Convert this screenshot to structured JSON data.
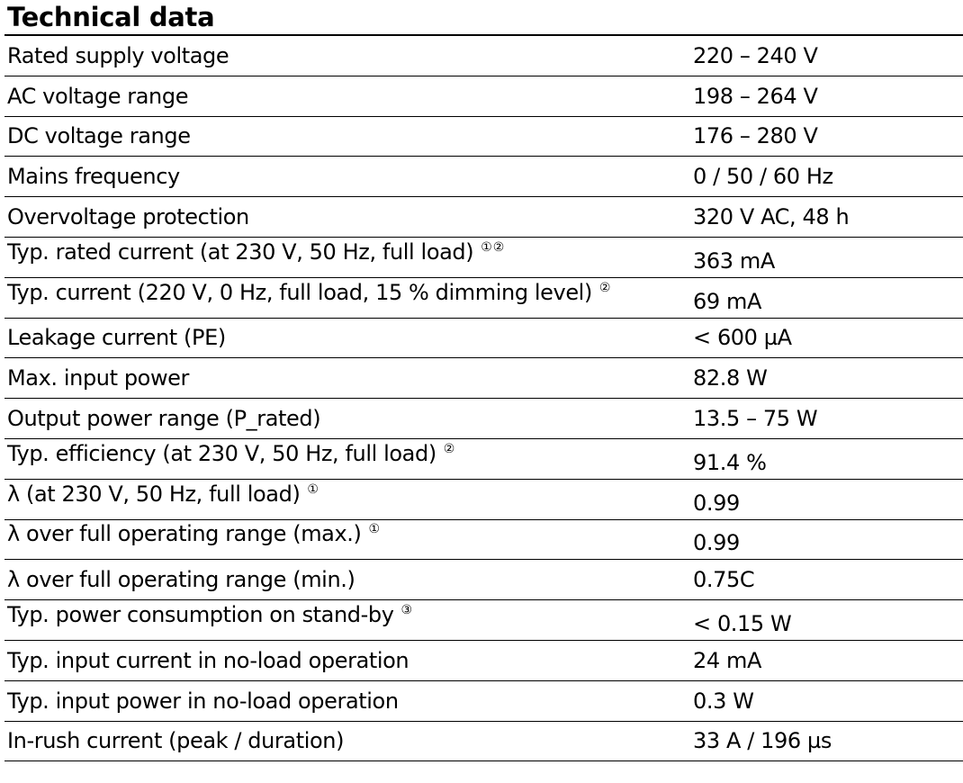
{
  "title": "Technical data",
  "rows": [
    {
      "parameter": "Rated supply voltage",
      "footnote": "",
      "value": "220 – 240 V"
    },
    {
      "parameter": "AC voltage range",
      "footnote": "",
      "value": "198 – 264 V"
    },
    {
      "parameter": "DC voltage range",
      "footnote": "",
      "value": "176 – 280 V"
    },
    {
      "parameter": "Mains frequency",
      "footnote": "",
      "value": "0 / 50 / 60 Hz"
    },
    {
      "parameter": "Overvoltage protection",
      "footnote": "",
      "value": "320 V AC, 48 h"
    },
    {
      "parameter": "Typ. rated current (at 230 V, 50 Hz, full load)",
      "footnote": "①②",
      "value": "363 mA"
    },
    {
      "parameter": "Typ. current (220 V, 0 Hz, full load, 15 % dimming level)",
      "footnote": "②",
      "value": "69 mA"
    },
    {
      "parameter": "Leakage current (PE)",
      "footnote": "",
      "value": "< 600 µA"
    },
    {
      "parameter": "Max. input power",
      "footnote": "",
      "value": "82.8 W"
    },
    {
      "parameter": "Output power range (P_rated)",
      "footnote": "",
      "value": "13.5 – 75 W"
    },
    {
      "parameter": "Typ. efficiency (at 230 V, 50 Hz, full load)",
      "footnote": "②",
      "value": "91.4 %"
    },
    {
      "parameter": "λ (at 230 V, 50 Hz, full load)",
      "footnote": "①",
      "value": "0.99"
    },
    {
      "parameter": "λ over full operating range (max.)",
      "footnote": "①",
      "value": "0.99"
    },
    {
      "parameter": "λ over full operating range (min.)",
      "footnote": "",
      "value": "0.75C"
    },
    {
      "parameter": "Typ. power consumption on stand-by",
      "footnote": "③",
      "value": "< 0.15 W"
    },
    {
      "parameter": "Typ. input current in no-load operation",
      "footnote": "",
      "value": "24 mA"
    },
    {
      "parameter": "Typ. input power in no-load operation",
      "footnote": "",
      "value": "0.3 W"
    },
    {
      "parameter": "In-rush current (peak / duration)",
      "footnote": "",
      "value": "33 A / 196 µs"
    }
  ]
}
